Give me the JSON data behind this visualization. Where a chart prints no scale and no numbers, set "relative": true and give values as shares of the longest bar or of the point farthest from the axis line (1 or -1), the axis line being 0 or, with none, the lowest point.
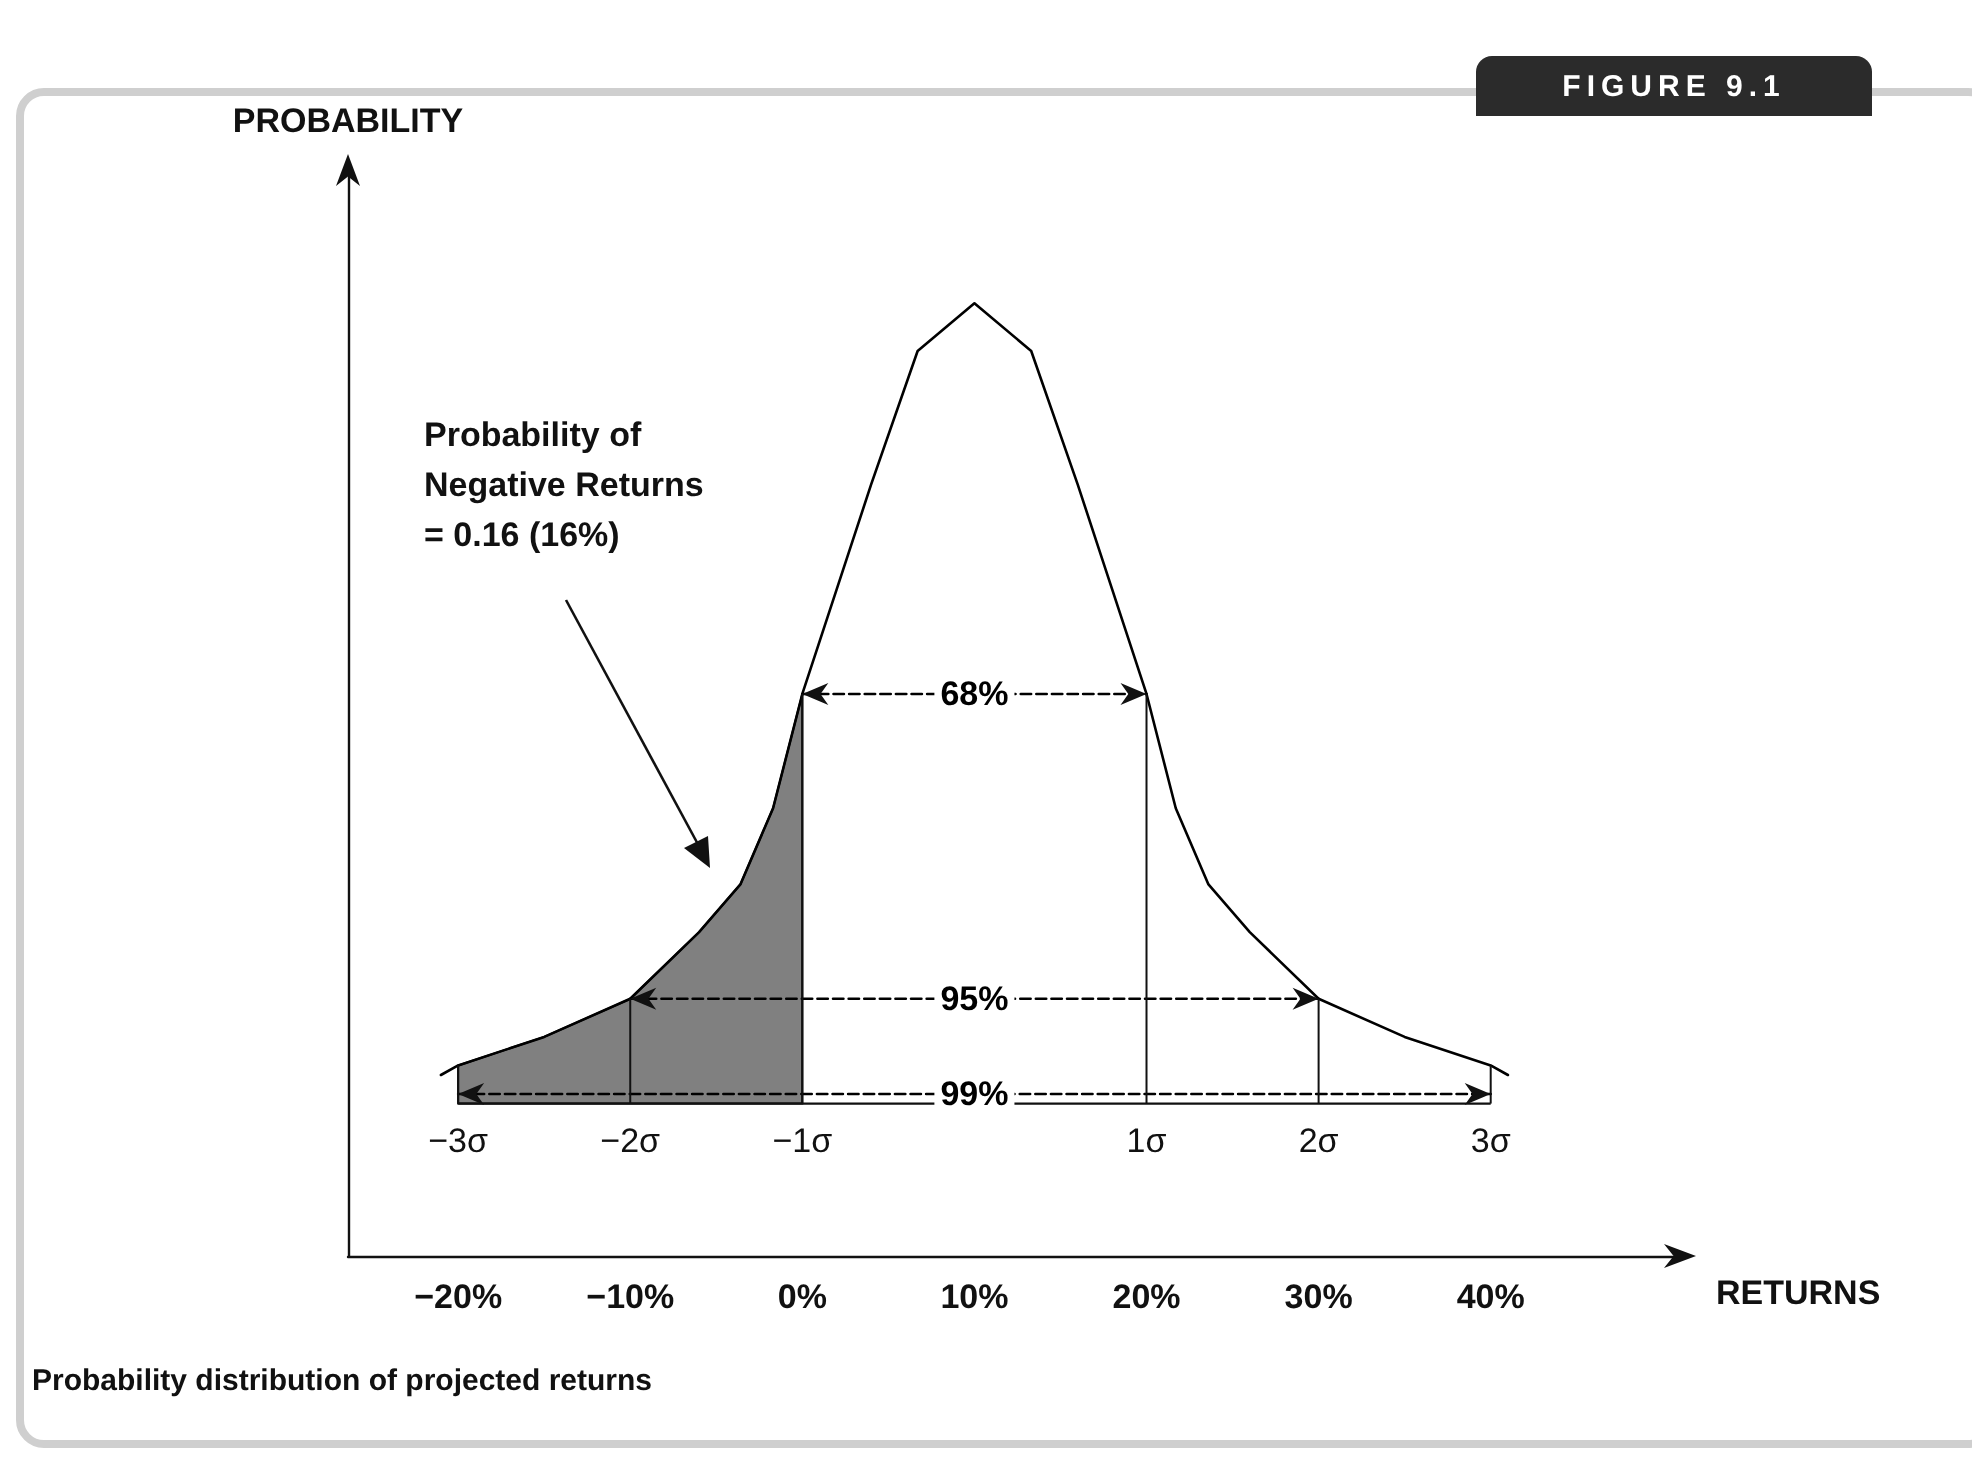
{
  "chart_data": {
    "type": "line",
    "title": "FIGURE 9.1",
    "xlabel": "RETURNS",
    "ylabel": "PROBABILITY",
    "relative": true,
    "tick_labels": "x",
    "marker": "none",
    "xlim": [
      -26.4,
      51
    ],
    "xticks": [
      {
        "value": -20,
        "label": "−20%"
      },
      {
        "value": -10,
        "label": "−10%"
      },
      {
        "value": 0,
        "label": "0%"
      },
      {
        "value": 10,
        "label": "10%"
      },
      {
        "value": 20,
        "label": "20%"
      },
      {
        "value": 30,
        "label": "30%"
      },
      {
        "value": 40,
        "label": "40%"
      }
    ],
    "series": [
      {
        "color": "#000000",
        "x": [
          -21,
          -20,
          -15,
          -10,
          -6,
          -3.6,
          -1.7,
          0,
          2,
          4,
          6.7,
          10,
          13.3,
          16,
          18,
          20,
          21.7,
          23.6,
          26,
          30,
          35,
          40,
          41
        ],
        "values": [
          0.19,
          0.2,
          0.23,
          0.27,
          0.34,
          0.39,
          0.47,
          0.59,
          0.7,
          0.81,
          0.95,
          1,
          0.95,
          0.81,
          0.7,
          0.59,
          0.47,
          0.39,
          0.34,
          0.27,
          0.23,
          0.2,
          0.19
        ]
      },
      {
        "type": "area",
        "color": "#808080",
        "x": [
          -20,
          -15,
          -10,
          -6,
          -3.6,
          -1.7,
          0
        ],
        "values": [
          0.2,
          0.23,
          0.27,
          0.34,
          0.39,
          0.47,
          0.59
        ]
      },
      {
        "name": "68%",
        "color": "#000000",
        "line_style": "dashed",
        "x": [
          0,
          20
        ],
        "values": [
          0.59,
          0.59
        ]
      },
      {
        "name": "95%",
        "color": "#000000",
        "line_style": "dashed",
        "x": [
          -10,
          30
        ],
        "values": [
          0.27,
          0.27
        ]
      },
      {
        "name": "99%",
        "color": "#000000",
        "line_style": "dashed",
        "x": [
          -20,
          40
        ],
        "values": [
          0.17,
          0.17
        ]
      }
    ],
    "ref_lines": [
      {
        "axis": "y",
        "value": 0.16
      },
      {
        "axis": "x",
        "value": -20,
        "label": "−3σ"
      },
      {
        "axis": "x",
        "value": -10,
        "label": "−2σ"
      },
      {
        "axis": "x",
        "value": 0,
        "label": "−1σ"
      },
      {
        "axis": "x",
        "value": 20,
        "label": "1σ"
      },
      {
        "axis": "x",
        "value": 30,
        "label": "2σ"
      },
      {
        "axis": "x",
        "value": 40,
        "label": "3σ"
      }
    ],
    "annotations": [
      "Probability distribution of projected returns",
      "Probability of\nNegative Returns\n= 0.16 (16%)"
    ]
  }
}
